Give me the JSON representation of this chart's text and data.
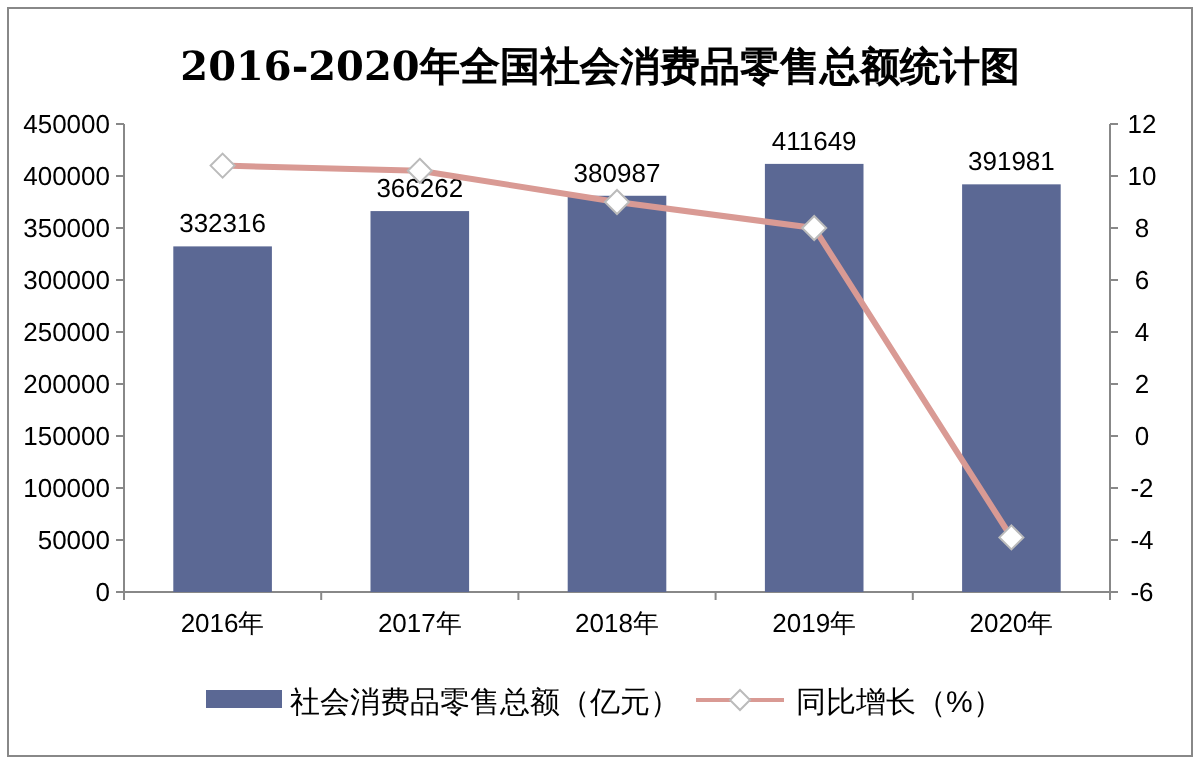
{
  "chart_data": {
    "type": "bar",
    "title": "2016-2020年全国社会消费品零售总额统计图",
    "categories": [
      "2016年",
      "2017年",
      "2018年",
      "2019年",
      "2020年"
    ],
    "series": [
      {
        "name": "社会消费品零售总额（亿元）",
        "color": "#5b6894",
        "values": [
          332316,
          366262,
          380987,
          411649,
          391981
        ],
        "value_labels": [
          "332316",
          "366262",
          "380987",
          "411649",
          "391981"
        ]
      },
      {
        "name": "同比增长（%）",
        "type": "line",
        "axis": "y2",
        "color": "#d99a94",
        "marker": "diamond",
        "values": [
          10.4,
          10.2,
          9.0,
          8.0,
          -3.9
        ]
      }
    ],
    "ylim": [
      0,
      450000
    ],
    "yticks": [
      0,
      50000,
      100000,
      150000,
      200000,
      250000,
      300000,
      350000,
      400000,
      450000
    ],
    "y2lim": [
      -6,
      12
    ],
    "y2ticks": [
      -6,
      -4,
      -2,
      0,
      2,
      4,
      6,
      8,
      10,
      12
    ],
    "grid": false,
    "legend": "bottom"
  }
}
